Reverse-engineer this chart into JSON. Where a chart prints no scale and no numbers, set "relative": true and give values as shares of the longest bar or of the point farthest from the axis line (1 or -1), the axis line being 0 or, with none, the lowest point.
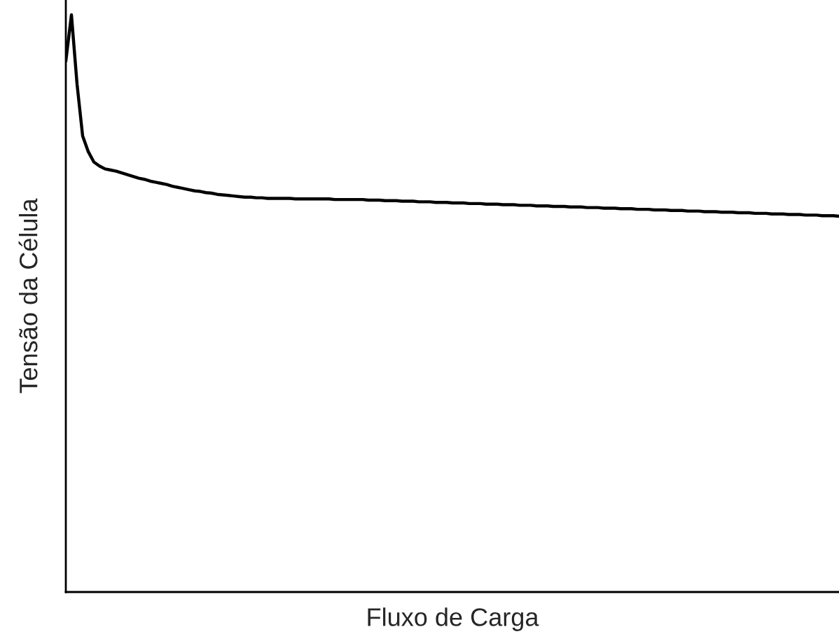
{
  "chart_data": {
    "type": "line",
    "relative": true,
    "xlabel": "Fluxo de Carga",
    "ylabel": "Tensão da Célula",
    "categories": [
      null,
      null,
      null,
      null,
      null,
      null,
      null,
      null,
      null,
      null,
      null,
      null,
      null,
      null,
      null,
      null,
      null,
      null,
      null,
      null,
      null,
      null,
      null,
      null,
      null,
      null,
      null,
      null,
      null,
      null,
      null,
      null,
      null,
      null,
      null,
      null,
      null,
      null,
      null,
      null,
      null,
      null,
      null,
      null,
      null,
      null,
      null,
      null,
      null,
      null,
      null,
      null,
      null,
      null,
      null,
      null,
      null,
      null,
      null,
      null,
      null,
      null,
      null,
      null,
      null,
      null,
      null,
      null,
      null,
      null,
      null,
      null,
      null,
      null,
      null,
      null,
      null,
      null,
      null,
      null,
      null,
      null,
      null,
      null,
      null,
      null,
      null,
      null,
      null,
      null,
      null,
      null,
      null,
      null,
      null,
      null,
      null,
      null,
      null,
      null,
      null,
      null,
      null,
      null,
      null,
      null,
      null,
      null,
      null,
      null,
      null,
      null,
      null,
      null,
      null,
      null,
      null,
      null,
      null,
      null,
      null,
      null,
      null,
      null,
      null,
      null,
      null,
      null,
      null,
      null,
      null,
      null,
      null,
      null,
      null,
      null,
      null,
      null,
      null
    ],
    "series": [
      {
        "color": "#000000",
        "values": [
          0.92,
          1,
          0.88,
          0.79,
          0.763,
          0.745,
          0.738,
          0.733,
          0.731,
          0.729,
          0.726,
          0.723,
          0.72,
          0.717,
          0.715,
          0.712,
          0.71,
          0.708,
          0.706,
          0.703,
          0.701,
          0.699,
          0.697,
          0.695,
          0.694,
          0.692,
          0.691,
          0.689,
          0.688,
          0.687,
          0.686,
          0.685,
          0.684,
          0.684,
          0.683,
          0.683,
          0.682,
          0.682,
          0.682,
          0.682,
          0.682,
          0.681,
          0.681,
          0.681,
          0.681,
          0.681,
          0.681,
          0.681,
          0.68,
          0.68,
          0.68,
          0.68,
          0.68,
          0.68,
          0.679,
          0.679,
          0.679,
          0.678,
          0.678,
          0.678,
          0.677,
          0.677,
          0.677,
          0.676,
          0.676,
          0.676,
          0.675,
          0.675,
          0.675,
          0.674,
          0.674,
          0.674,
          0.673,
          0.673,
          0.673,
          0.672,
          0.672,
          0.672,
          0.671,
          0.671,
          0.671,
          0.67,
          0.67,
          0.67,
          0.669,
          0.669,
          0.669,
          0.668,
          0.668,
          0.668,
          0.667,
          0.667,
          0.667,
          0.666,
          0.666,
          0.666,
          0.665,
          0.665,
          0.665,
          0.664,
          0.664,
          0.664,
          0.663,
          0.663,
          0.663,
          0.662,
          0.662,
          0.662,
          0.661,
          0.661,
          0.661,
          0.66,
          0.66,
          0.66,
          0.659,
          0.659,
          0.659,
          0.658,
          0.658,
          0.658,
          0.657,
          0.657,
          0.657,
          0.656,
          0.656,
          0.656,
          0.655,
          0.655,
          0.655,
          0.654,
          0.654,
          0.654,
          0.653,
          0.653,
          0.653,
          0.652,
          0.652,
          0.652,
          0.651
        ]
      }
    ]
  }
}
